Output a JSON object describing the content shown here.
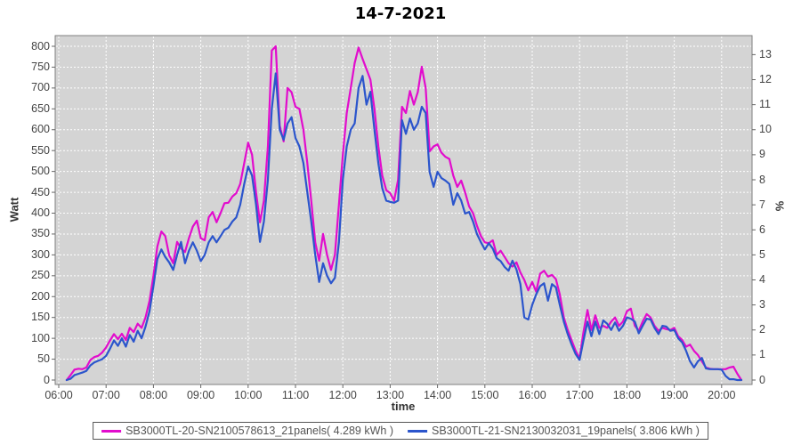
{
  "title": "14-7-2021",
  "axes": {
    "x": {
      "label": "time",
      "tick_labels": [
        "06:00",
        "07:00",
        "08:00",
        "09:00",
        "10:00",
        "11:00",
        "12:00",
        "13:00",
        "14:00",
        "15:00",
        "16:00",
        "17:00",
        "18:00",
        "19:00",
        "20:00"
      ]
    },
    "y_left": {
      "label": "Watt",
      "min": 0,
      "max": 800,
      "tick_step": 50,
      "ticks": [
        0,
        50,
        100,
        150,
        200,
        250,
        300,
        350,
        400,
        450,
        500,
        550,
        600,
        650,
        700,
        750,
        800
      ]
    },
    "y_right": {
      "label": "%",
      "min": 0,
      "max": 13,
      "tick_step": 1,
      "ticks": [
        0,
        1,
        2,
        3,
        4,
        5,
        6,
        7,
        8,
        9,
        10,
        11,
        12,
        13
      ]
    }
  },
  "legend": [
    {
      "label": "SB3000TL-20-SN2100578613_21panels( 4.289 kWh )",
      "color": "#e20ccd"
    },
    {
      "label": "SB3000TL-21-SN2130032031_19panels( 3.806 kWh )",
      "color": "#2b55cc"
    }
  ],
  "colors": {
    "plot_bg": "#d4d4d4",
    "grid": "#ffffff",
    "plot_border": "#7f7f7f",
    "tick_mark": "#666666",
    "tick_text": "#444444",
    "legend_text": "#555555",
    "title_text": "#000000"
  },
  "chart_data": {
    "type": "line",
    "title": "14-7-2021",
    "xlabel": "time",
    "ylabel_left": "Watt",
    "ylabel_right": "%",
    "x_start_time": "06:10",
    "x_step_minutes": 5,
    "x_axis_range_hours": [
      5.92,
      20.65
    ],
    "ylim_left": [
      0,
      800
    ],
    "ylim_right": [
      0,
      13
    ],
    "right_axis_relation": "percent = watt / 60",
    "grid": true,
    "legend_position": "bottom",
    "series": [
      {
        "name": "SB3000TL-20-SN2100578613_21panels( 4.289 kWh )",
        "color": "#e20ccd",
        "unit": "W",
        "values": [
          0,
          12,
          25,
          27,
          26,
          30,
          48,
          55,
          58,
          66,
          78,
          95,
          110,
          98,
          111,
          96,
          125,
          115,
          135,
          125,
          150,
          190,
          250,
          320,
          356,
          345,
          299,
          280,
          331,
          315,
          307,
          340,
          368,
          382,
          340,
          335,
          390,
          403,
          378,
          400,
          424,
          425,
          440,
          448,
          470,
          520,
          569,
          540,
          450,
          378,
          430,
          560,
          790,
          800,
          610,
          572,
          700,
          690,
          655,
          650,
          600,
          520,
          430,
          330,
          286,
          350,
          300,
          264,
          300,
          420,
          540,
          640,
          700,
          760,
          797,
          770,
          745,
          720,
          650,
          560,
          490,
          455,
          448,
          430,
          480,
          655,
          640,
          693,
          660,
          690,
          751,
          700,
          548,
          560,
          565,
          545,
          535,
          530,
          490,
          463,
          478,
          450,
          416,
          400,
          370,
          345,
          330,
          328,
          335,
          300,
          310,
          295,
          280,
          272,
          282,
          258,
          240,
          215,
          235,
          212,
          255,
          262,
          248,
          252,
          242,
          205,
          150,
          120,
          95,
          70,
          52,
          115,
          168,
          120,
          155,
          125,
          130,
          125,
          140,
          150,
          130,
          140,
          165,
          171,
          130,
          118,
          140,
          158,
          150,
          130,
          118,
          125,
          122,
          120,
          125,
          105,
          96,
          80,
          85,
          70,
          60,
          45,
          30,
          27,
          26,
          26,
          26,
          26,
          30,
          32,
          15,
          0
        ]
      },
      {
        "name": "SB3000TL-21-SN2130032031_19panels( 3.806 kWh )",
        "color": "#2b55cc",
        "unit": "W",
        "values": [
          0,
          3,
          12,
          15,
          18,
          22,
          35,
          42,
          46,
          50,
          58,
          75,
          95,
          82,
          100,
          80,
          108,
          92,
          118,
          100,
          128,
          165,
          225,
          290,
          313,
          295,
          282,
          264,
          300,
          331,
          280,
          310,
          330,
          310,
          285,
          300,
          330,
          345,
          330,
          345,
          360,
          365,
          380,
          390,
          420,
          470,
          512,
          490,
          420,
          331,
          380,
          480,
          650,
          735,
          600,
          576,
          615,
          630,
          580,
          560,
          520,
          450,
          380,
          300,
          235,
          280,
          250,
          232,
          245,
          330,
          480,
          560,
          600,
          615,
          700,
          729,
          660,
          691,
          600,
          520,
          460,
          430,
          427,
          425,
          430,
          623,
          590,
          627,
          600,
          615,
          655,
          640,
          499,
          463,
          499,
          484,
          478,
          470,
          420,
          448,
          430,
          399,
          403,
          380,
          350,
          330,
          313,
          328,
          315,
          292,
          285,
          271,
          262,
          286,
          265,
          230,
          150,
          145,
          180,
          205,
          225,
          232,
          190,
          230,
          222,
          180,
          140,
          110,
          85,
          62,
          48,
          95,
          140,
          105,
          140,
          110,
          143,
          135,
          120,
          138,
          118,
          130,
          150,
          147,
          140,
          112,
          130,
          147,
          145,
          125,
          110,
          130,
          128,
          118,
          120,
          100,
          90,
          70,
          45,
          30,
          45,
          53,
          28,
          26,
          26,
          26,
          25,
          10,
          2,
          2,
          0,
          0
        ]
      }
    ]
  }
}
